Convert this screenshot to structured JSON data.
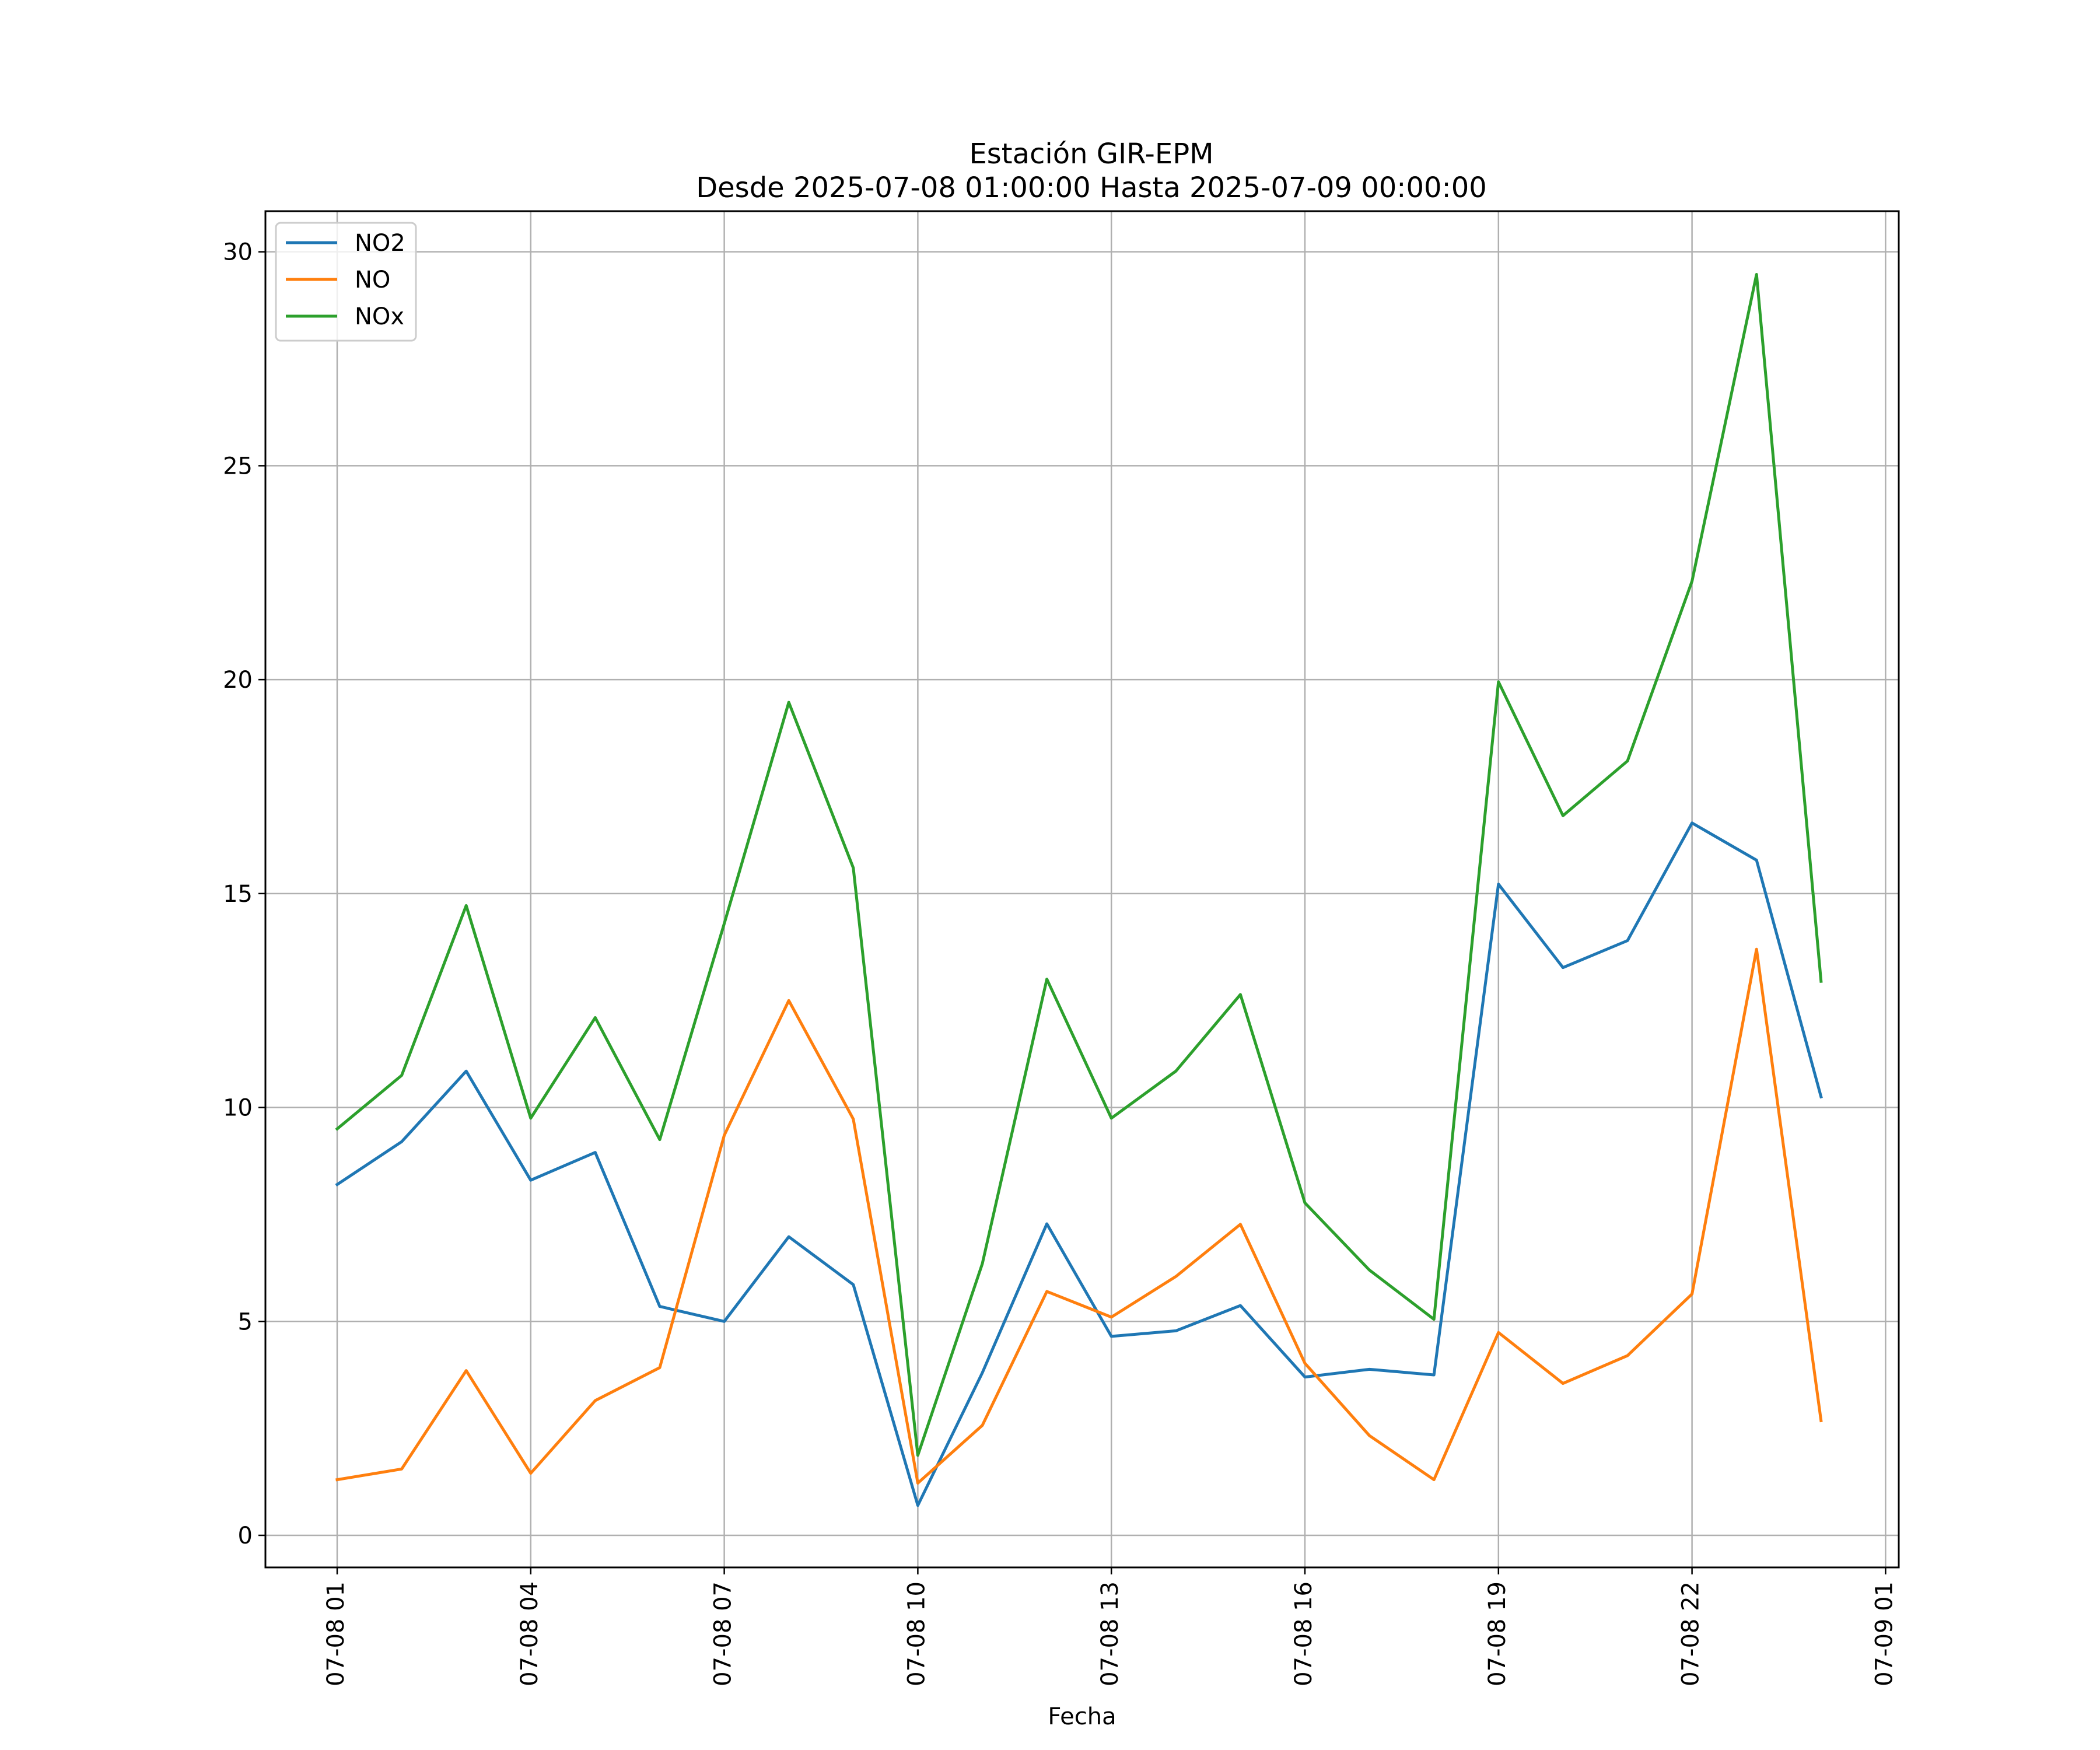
{
  "chart_data": {
    "type": "line",
    "title": "Estación GIR-EPM",
    "subtitle": "Desde 2025-07-08 01:00:00 Hasta 2025-07-09 00:00:00",
    "xlabel": "Fecha",
    "ylabel": "",
    "ylim": [
      -0.75,
      30.95
    ],
    "y_ticks": [
      0,
      5,
      10,
      15,
      20,
      25,
      30
    ],
    "x_ticks": [
      "07-08 01",
      "07-08 04",
      "07-08 07",
      "07-08 10",
      "07-08 13",
      "07-08 16",
      "07-08 19",
      "07-08 22",
      "07-09 01"
    ],
    "x": [
      "07-08 01",
      "07-08 02",
      "07-08 03",
      "07-08 04",
      "07-08 05",
      "07-08 06",
      "07-08 07",
      "07-08 08",
      "07-08 09",
      "07-08 10",
      "07-08 11",
      "07-08 12",
      "07-08 13",
      "07-08 14",
      "07-08 15",
      "07-08 16",
      "07-08 17",
      "07-08 18",
      "07-08 19",
      "07-08 20",
      "07-08 21",
      "07-08 22",
      "07-08 23",
      "07-09 00"
    ],
    "grid": true,
    "legend_position": "top-left",
    "series": [
      {
        "name": "NO2",
        "color": "#1f77b4",
        "values": [
          8.2,
          9.2,
          10.85,
          8.3,
          8.95,
          5.35,
          5.0,
          6.98,
          5.86,
          0.7,
          3.8,
          7.28,
          4.65,
          4.78,
          5.37,
          3.7,
          3.88,
          3.75,
          15.22,
          13.27,
          13.9,
          16.65,
          15.78,
          10.25
        ]
      },
      {
        "name": "NO",
        "color": "#ff7f0e",
        "values": [
          1.3,
          1.55,
          3.85,
          1.45,
          3.15,
          3.92,
          9.35,
          12.5,
          9.73,
          1.22,
          2.57,
          5.7,
          5.1,
          6.05,
          7.27,
          4.02,
          2.33,
          1.3,
          4.74,
          3.55,
          4.2,
          5.64,
          13.7,
          2.68
        ]
      },
      {
        "name": "NOx",
        "color": "#2ca02c",
        "values": [
          9.5,
          10.75,
          14.72,
          9.75,
          12.1,
          9.25,
          14.3,
          19.47,
          15.6,
          1.87,
          6.35,
          13.0,
          9.75,
          10.85,
          12.64,
          7.77,
          6.2,
          5.05,
          19.95,
          16.82,
          18.1,
          22.3,
          29.47,
          12.95
        ]
      }
    ]
  }
}
